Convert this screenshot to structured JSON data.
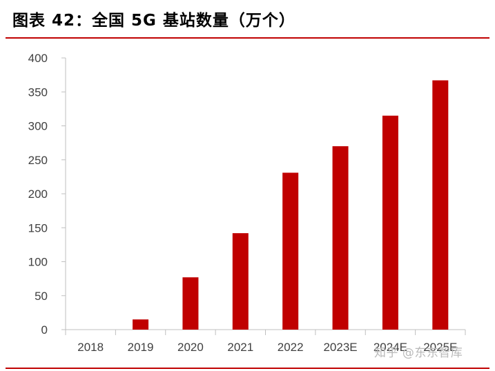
{
  "header": {
    "title": "图表 42：全国 5G 基站数量（万个）"
  },
  "chart_data": {
    "type": "bar",
    "title": "",
    "xlabel": "",
    "ylabel": "",
    "categories": [
      "2018",
      "2019",
      "2020",
      "2021",
      "2022",
      "2023E",
      "2024E",
      "2025E"
    ],
    "values": [
      0,
      15,
      77,
      142,
      231,
      270,
      315,
      367
    ],
    "ylim": [
      0,
      400
    ],
    "yticks": [
      "0",
      "50",
      "100",
      "150",
      "200",
      "250",
      "300",
      "350",
      "400"
    ],
    "bar_color": "#c00000",
    "grid": false,
    "legend": "none"
  },
  "watermark": {
    "text": "知乎 @东东智库"
  },
  "colors": {
    "accent": "#c00000",
    "axis": "#bfbfbf",
    "tick_text": "#404040"
  }
}
